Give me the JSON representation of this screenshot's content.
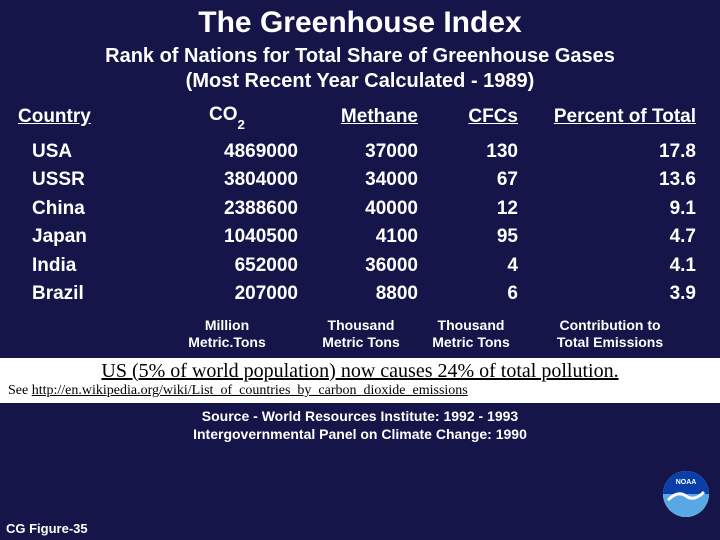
{
  "colors": {
    "background": "#15154a",
    "text": "#ffffff",
    "callout_bg": "#ffffff",
    "callout_text": "#000000",
    "logo_top": "#0a3ea8",
    "logo_bottom": "#5aa7e6"
  },
  "title": "The Greenhouse Index",
  "subtitle_line1": "Rank of Nations for Total Share of Greenhouse Gases",
  "subtitle_line2": "(Most Recent Year Calculated - 1989)",
  "headers": {
    "country": "Country",
    "co2": "CO",
    "co2_sub": "2",
    "methane": "Methane",
    "cfcs": "CFCs",
    "percent": "Percent of Total"
  },
  "rows": [
    {
      "country": "USA",
      "co2": "4869000",
      "methane": "37000",
      "cfcs": "130",
      "pct": "17.8"
    },
    {
      "country": "USSR",
      "co2": "3804000",
      "methane": "34000",
      "cfcs": "67",
      "pct": "13.6"
    },
    {
      "country": "China",
      "co2": "2388600",
      "methane": "40000",
      "cfcs": "12",
      "pct": "9.1"
    },
    {
      "country": "Japan",
      "co2": "1040500",
      "methane": "4100",
      "cfcs": "95",
      "pct": "4.7"
    },
    {
      "country": "India",
      "co2": "652000",
      "methane": "36000",
      "cfcs": "4",
      "pct": "4.1"
    },
    {
      "country": "Brazil",
      "co2": "207000",
      "methane": "8800",
      "cfcs": "6",
      "pct": "3.9"
    }
  ],
  "units": {
    "co2_l1": "Million",
    "co2_l2": "Metric.Tons",
    "methane_l1": "Thousand",
    "methane_l2": "Metric Tons",
    "cfcs_l1": "Thousand",
    "cfcs_l2": "Metric Tons",
    "pct_l1": "Contribution to",
    "pct_l2": "Total Emissions"
  },
  "callout": {
    "line1": "US (5% of world population) now causes 24% of total pollution.",
    "see_prefix": "See ",
    "link": "http://en.wikipedia.org/wiki/List_of_countries_by_carbon_dioxide_emissions"
  },
  "source_line1": "Source - World Resources Institute: 1992 - 1993",
  "source_line2": "Intergovernmental Panel on Climate Change: 1990",
  "figure_label": "CG Figure-35",
  "logo_label": "NOAA"
}
